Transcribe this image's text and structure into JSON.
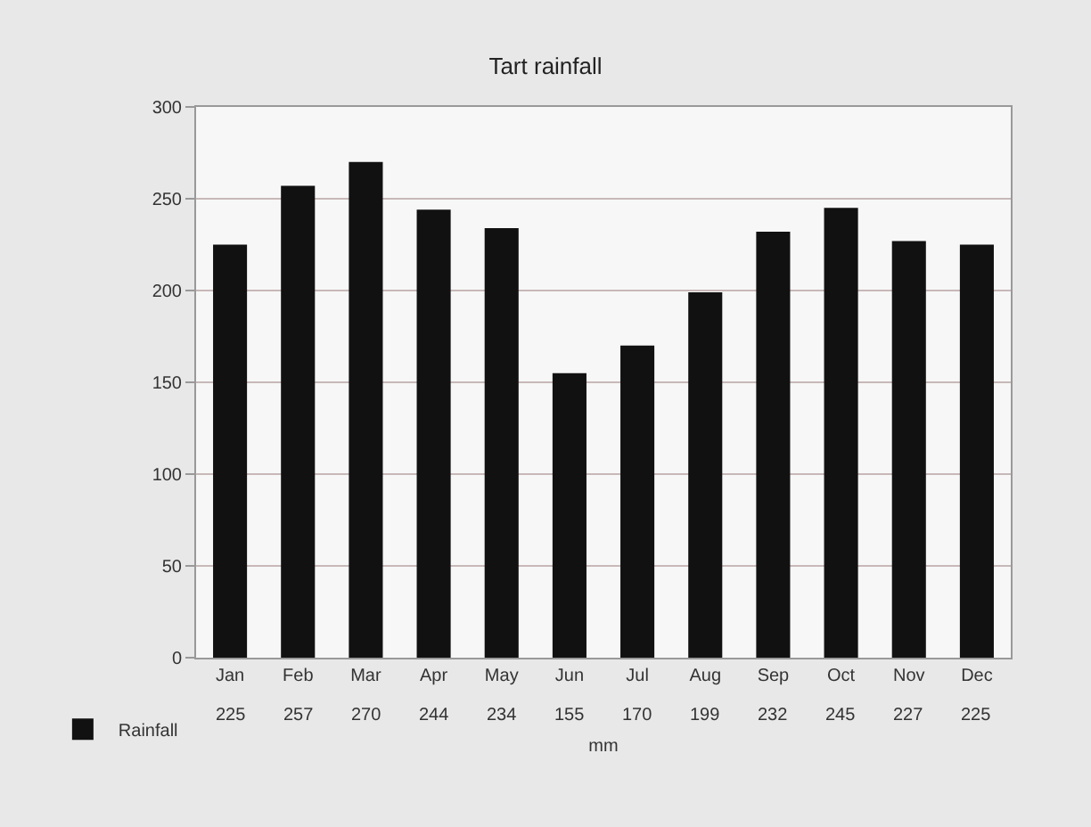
{
  "chart_data": {
    "type": "bar",
    "title": "Tart rainfall",
    "xlabel": "mm",
    "categories": [
      "Jan",
      "Feb",
      "Mar",
      "Apr",
      "May",
      "Jun",
      "Jul",
      "Aug",
      "Sep",
      "Oct",
      "Nov",
      "Dec"
    ],
    "series": [
      {
        "name": "Rainfall",
        "color": "#111111",
        "values": [
          225,
          257,
          270,
          244,
          234,
          155,
          170,
          199,
          232,
          245,
          227,
          225
        ]
      }
    ],
    "ylim": [
      0,
      300
    ],
    "yticks": [
      0,
      50,
      100,
      150,
      200,
      250,
      300
    ],
    "grid": "y",
    "data_labels": true,
    "legend": "bottom left"
  }
}
